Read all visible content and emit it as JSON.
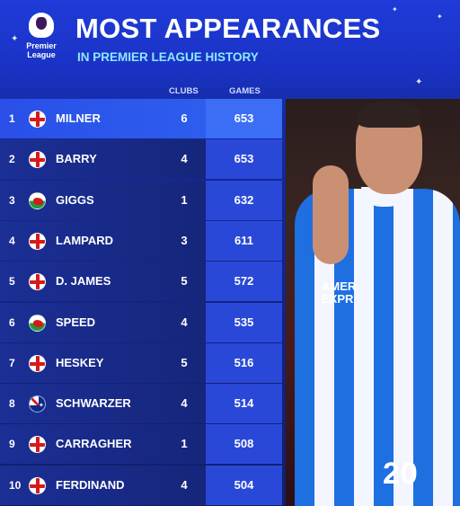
{
  "header": {
    "logo_text_line1": "Premier",
    "logo_text_line2": "League",
    "title": "MOST APPEARANCES",
    "subtitle": "IN PREMIER LEAGUE HISTORY"
  },
  "columns": {
    "clubs": "CLUBS",
    "games": "GAMES"
  },
  "rows": [
    {
      "rank": "1",
      "flag": "england-flag",
      "name": "MILNER",
      "clubs": "6",
      "games": "653"
    },
    {
      "rank": "2",
      "flag": "england-flag",
      "name": "BARRY",
      "clubs": "4",
      "games": "653"
    },
    {
      "rank": "3",
      "flag": "wales-flag",
      "name": "GIGGS",
      "clubs": "1",
      "games": "632"
    },
    {
      "rank": "4",
      "flag": "england-flag",
      "name": "LAMPARD",
      "clubs": "3",
      "games": "611"
    },
    {
      "rank": "5",
      "flag": "england-flag",
      "name": "D. JAMES",
      "clubs": "5",
      "games": "572"
    },
    {
      "rank": "6",
      "flag": "wales-flag",
      "name": "SPEED",
      "clubs": "4",
      "games": "535"
    },
    {
      "rank": "7",
      "flag": "england-flag",
      "name": "HESKEY",
      "clubs": "5",
      "games": "516"
    },
    {
      "rank": "8",
      "flag": "australia-flag",
      "name": "SCHWARZER",
      "clubs": "4",
      "games": "514"
    },
    {
      "rank": "9",
      "flag": "england-flag",
      "name": "CARRAGHER",
      "clubs": "1",
      "games": "508"
    },
    {
      "rank": "10",
      "flag": "england-flag",
      "name": "FERDINAND",
      "clubs": "4",
      "games": "504"
    }
  ],
  "photo": {
    "shirt_number": "20",
    "sponsor_line1": "AMER",
    "sponsor_line2": "EXPR"
  },
  "colors": {
    "header_blue": "#1f3bd8",
    "subtitle_cyan": "#8fe8ff",
    "row_dark": "#16267c",
    "highlight_row": "#2f63f0",
    "games_column": "#2a48d8"
  }
}
